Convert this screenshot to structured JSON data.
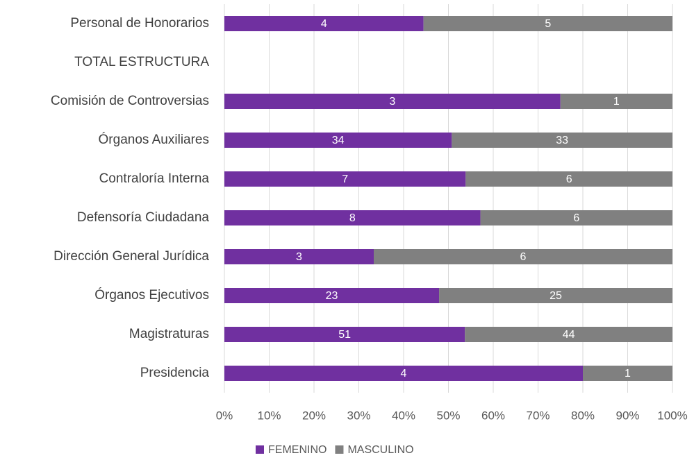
{
  "chart_data": {
    "type": "bar",
    "orientation": "horizontal",
    "stacked": "percent",
    "categories": [
      "Personal de Honorarios",
      "TOTAL ESTRUCTURA",
      "Comisión de Controversias",
      "Órganos Auxiliares",
      "Contraloría Interna",
      "Defensoría Ciudadana",
      "Dirección General Jurídica",
      "Órganos Ejecutivos",
      "Magistraturas",
      "Presidencia"
    ],
    "series": [
      {
        "name": "FEMENINO",
        "color": "#7030a0",
        "values": [
          4,
          null,
          3,
          34,
          7,
          8,
          3,
          23,
          51,
          4
        ]
      },
      {
        "name": "MASCULINO",
        "color": "#808080",
        "values": [
          5,
          null,
          1,
          33,
          6,
          6,
          6,
          25,
          44,
          1
        ]
      }
    ],
    "xlim": [
      0,
      100
    ],
    "xticks": [
      {
        "value": 0,
        "label": "0%"
      },
      {
        "value": 10,
        "label": "10%"
      },
      {
        "value": 20,
        "label": "20%"
      },
      {
        "value": 30,
        "label": "30%"
      },
      {
        "value": 40,
        "label": "40%"
      },
      {
        "value": 50,
        "label": "50%"
      },
      {
        "value": 60,
        "label": "60%"
      },
      {
        "value": 70,
        "label": "70%"
      },
      {
        "value": 80,
        "label": "80%"
      },
      {
        "value": 90,
        "label": "90%"
      },
      {
        "value": 100,
        "label": "100%"
      }
    ],
    "grid": true,
    "legend": "bottom"
  }
}
